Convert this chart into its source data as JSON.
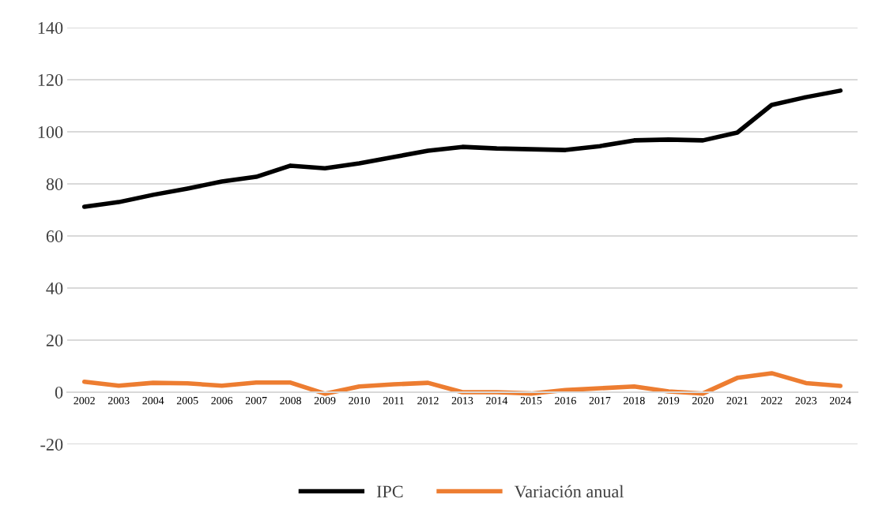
{
  "chart_data": {
    "type": "line",
    "categories": [
      "2002",
      "2003",
      "2004",
      "2005",
      "2006",
      "2007",
      "2008",
      "2009",
      "2010",
      "2011",
      "2012",
      "2013",
      "2014",
      "2015",
      "2016",
      "2017",
      "2018",
      "2019",
      "2020",
      "2021",
      "2022",
      "2023",
      "2024"
    ],
    "series": [
      {
        "name": "IPC",
        "color": "#000000",
        "values": [
          71.2,
          73.0,
          75.8,
          78.2,
          80.9,
          82.7,
          87.0,
          86.0,
          87.9,
          90.3,
          92.7,
          94.2,
          93.6,
          93.3,
          93.0,
          94.5,
          96.7,
          97.0,
          96.7,
          99.7,
          110.3,
          113.3,
          115.8
        ]
      },
      {
        "name": "Variación anual",
        "color": "#ed7d31",
        "values": [
          4.0,
          2.5,
          3.6,
          3.4,
          2.5,
          3.7,
          3.7,
          -0.6,
          2.2,
          3.0,
          3.6,
          0.0,
          0.0,
          -0.5,
          0.8,
          1.5,
          2.2,
          0.3,
          -0.5,
          5.5,
          7.3,
          3.5,
          2.4
        ]
      }
    ],
    "ylim": [
      -20,
      140
    ],
    "yticks": [
      -20,
      0,
      20,
      40,
      60,
      80,
      100,
      120,
      140
    ],
    "grid": "y",
    "legend": "bottom",
    "marker": "none",
    "line_style": "solid"
  }
}
